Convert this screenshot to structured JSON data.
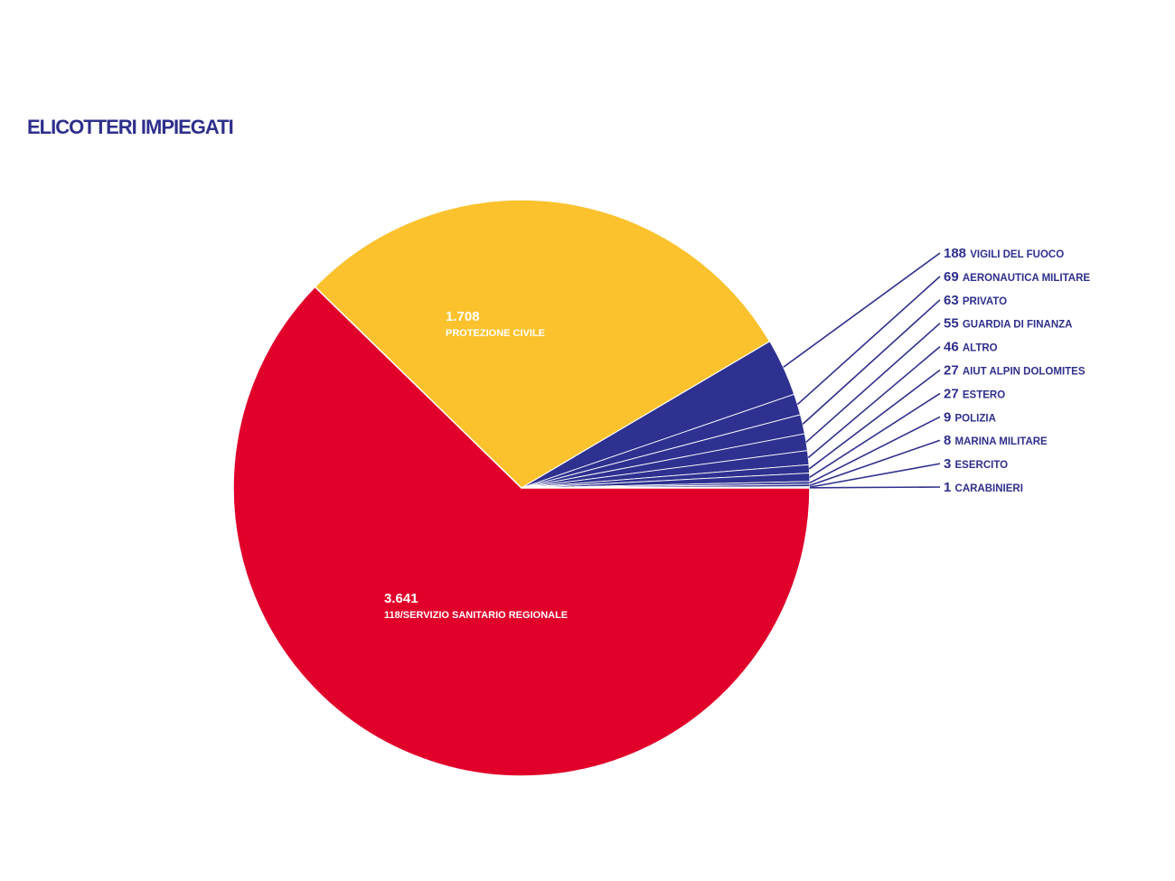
{
  "chart_data": {
    "type": "pie",
    "title": "ELICOTTERI IMPIEGATI",
    "colors": {
      "main_slice": "#e0002a",
      "second_slice": "#fbc22d",
      "minor_slices": "#2e3190",
      "text": "#2e2f8c"
    },
    "slices": [
      {
        "value": 3641,
        "value_label": "3.641",
        "label": "118/SERVIZIO SANITARIO REGIONALE"
      },
      {
        "value": 1708,
        "value_label": "1.708",
        "label": "PROTEZIONE CIVILE"
      },
      {
        "value": 188,
        "value_label": "188",
        "label": "VIGILI DEL FUOCO"
      },
      {
        "value": 69,
        "value_label": "69",
        "label": "AERONAUTICA MILITARE"
      },
      {
        "value": 63,
        "value_label": "63",
        "label": "PRIVATO"
      },
      {
        "value": 55,
        "value_label": "55",
        "label": "GUARDIA DI FINANZA"
      },
      {
        "value": 46,
        "value_label": "46",
        "label": "ALTRO"
      },
      {
        "value": 27,
        "value_label": "27",
        "label": "AIUT ALPIN DOLOMITES"
      },
      {
        "value": 27,
        "value_label": "27",
        "label": "ESTERO"
      },
      {
        "value": 9,
        "value_label": "9",
        "label": "POLIZIA"
      },
      {
        "value": 8,
        "value_label": "8",
        "label": "MARINA MILITARE"
      },
      {
        "value": 3,
        "value_label": "3",
        "label": "ESERCITO"
      },
      {
        "value": 1,
        "value_label": "1",
        "label": "CARABINIERI"
      }
    ]
  }
}
